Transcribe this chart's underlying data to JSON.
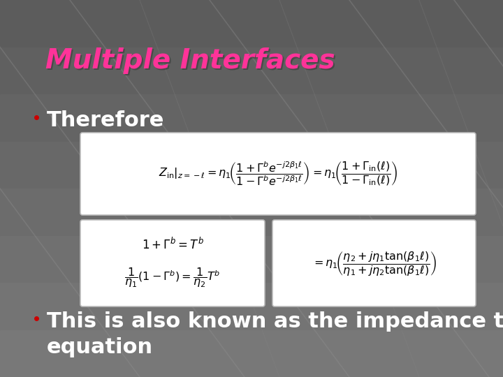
{
  "title": "Multiple Interfaces",
  "title_color": "#FF3399",
  "title_fontsize": 28,
  "background_top": "#5a5a5a",
  "background_bottom": "#787878",
  "bullet_color": "#ffffff",
  "text_fontsize": 22,
  "bullet1_text": "Therefore",
  "bullet2_line1": "This is also known as the impedance transfer",
  "bullet2_line2": "equation",
  "box_facecolor": "#ffffff",
  "box_edgecolor": "#bbbbbb",
  "eq_color": "#000000",
  "bullet_dot_color": "#cc0000",
  "diag_color": "#888888"
}
